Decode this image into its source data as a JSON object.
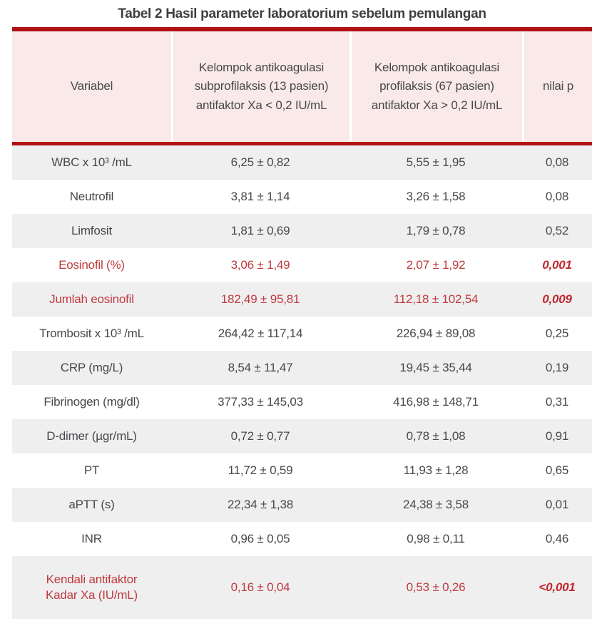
{
  "title": "Tabel 2 Hasil parameter laboratorium sebelum pemulangan",
  "colors": {
    "accent_red_line": "#b01116",
    "header_bg": "#f9e9e8",
    "row_alt_bg": "#efeff0",
    "text_dark": "#47484c",
    "text_red": "#c03a3e",
    "p_value_red": "#c1272d"
  },
  "table": {
    "headers": [
      "Variabel",
      "Kelompok antikoagulasi subprofilaksis (13 pasien) antifaktor Xa < 0,2 IU/mL",
      "Kelompok antikoagulasi profilaksis (67 pasien) antifaktor Xa > 0,2 IU/mL",
      "nilai p"
    ],
    "rows": [
      {
        "variable": "WBC x 10³ /mL",
        "group1": "6,25 ± 0,82",
        "group2": "5,55 ± 1,95",
        "p": "0,08",
        "highlight": false
      },
      {
        "variable": "Neutrofil",
        "group1": "3,81 ± 1,14",
        "group2": "3,26 ± 1,58",
        "p": "0,08",
        "highlight": false
      },
      {
        "variable": "Limfosit",
        "group1": "1,81 ± 0,69",
        "group2": "1,79 ± 0,78",
        "p": "0,52",
        "highlight": false
      },
      {
        "variable": "Eosinofil (%)",
        "group1": "3,06 ± 1,49",
        "group2": "2,07 ± 1,92",
        "p": "0,001",
        "highlight": true
      },
      {
        "variable": "Jumlah eosinofil",
        "group1": "182,49 ± 95,81",
        "group2": "112,18 ± 102,54",
        "p": "0,009",
        "highlight": true
      },
      {
        "variable": "Trombosit x 10³ /mL",
        "group1": "264,42 ± 117,14",
        "group2": "226,94 ± 89,08",
        "p": "0,25",
        "highlight": false
      },
      {
        "variable": "CRP (mg/L)",
        "group1": "8,54 ± 11,47",
        "group2": "19,45 ± 35,44",
        "p": "0,19",
        "highlight": false
      },
      {
        "variable": "Fibrinogen (mg/dl)",
        "group1": "377,33 ± 145,03",
        "group2": "416,98 ± 148,71",
        "p": "0,31",
        "highlight": false
      },
      {
        "variable": "D-dimer (µgr/mL)",
        "group1": "0,72 ± 0,77",
        "group2": "0,78 ± 1,08",
        "p": "0,91",
        "highlight": false
      },
      {
        "variable": "PT",
        "group1": "11,72 ± 0,59",
        "group2": "11,93 ± 1,28",
        "p": "0,65",
        "highlight": false
      },
      {
        "variable": "aPTT (s)",
        "group1": "22,34 ± 1,38",
        "group2": "24,38 ± 3,58",
        "p": "0,01",
        "highlight": false
      },
      {
        "variable": "INR",
        "group1": "0,96 ± 0,05",
        "group2": "0,98 ± 0,11",
        "p": "0,46",
        "highlight": false
      },
      {
        "variable": "Kendali antifaktor Kadar Xa (IU/mL)",
        "group1": "0,16 ± 0,04",
        "group2": "0,53 ± 0,26",
        "p": "<0,001",
        "highlight": true
      }
    ]
  }
}
